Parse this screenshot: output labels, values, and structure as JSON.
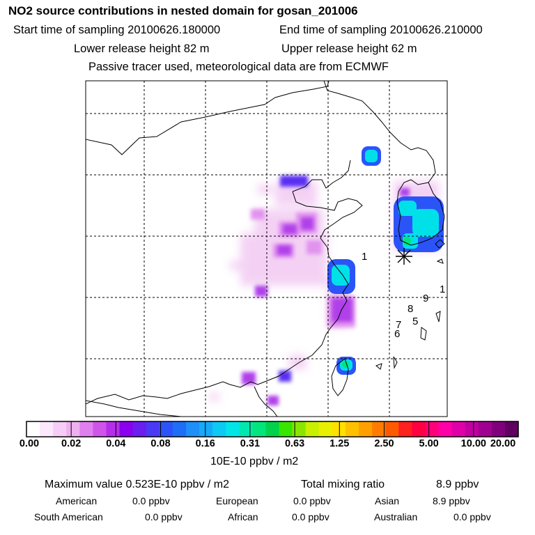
{
  "header": {
    "title": "NO2 source contributions in nested domain for gosan_201006",
    "start_label": "Start time of sampling 20100626.180000",
    "end_label": "End time of sampling 20100626.210000",
    "lower_label": "Lower release height   82 m",
    "upper_label": "Upper release height   62 m",
    "note": "Passive tracer used, meteorological data are from ECMWF"
  },
  "map": {
    "trajectory_markers": [
      "1",
      "1",
      "9",
      "8",
      "5",
      "7",
      "6"
    ],
    "receptor_marker": "gosan-asterisk"
  },
  "colorbar": {
    "tick_labels": [
      "0.00",
      "0.02",
      "0.04",
      "0.08",
      "0.16",
      "0.31",
      "0.63",
      "1.25",
      "2.50",
      "5.00",
      "10.00",
      "20.00"
    ],
    "colors": [
      "#ffffff",
      "#fbe8fb",
      "#f6cdf6",
      "#f0b0f0",
      "#e080ee",
      "#cf55ea",
      "#b52fea",
      "#8a00ef",
      "#6a1eef",
      "#4a3af5",
      "#2b54f8",
      "#1e6ef8",
      "#1e8ef8",
      "#16aaf8",
      "#0ccaf3",
      "#00e6e6",
      "#00e8b0",
      "#00e67d",
      "#00d24b",
      "#38e600",
      "#8ae600",
      "#c8f000",
      "#e8f000",
      "#ffe000",
      "#ffc000",
      "#ffa000",
      "#ff7c00",
      "#ff5a00",
      "#ff2020",
      "#ff0040",
      "#ff0078",
      "#ff00a8",
      "#e000a8",
      "#c000a0",
      "#a00090",
      "#80007c",
      "#600060"
    ],
    "unit": "10E-10 ppbv / m2"
  },
  "summary": {
    "max_label": "Maximum value  0.523E-10 ppbv / m2",
    "total_label": "Total mixing ratio",
    "total_value": "8.9 ppbv",
    "rows": [
      {
        "name": "American",
        "value": "0.0 ppbv"
      },
      {
        "name": "European",
        "value": "0.0 ppbv"
      },
      {
        "name": "Asian",
        "value": "8.9 ppbv"
      },
      {
        "name": "South American",
        "value": "0.0 ppbv"
      },
      {
        "name": "African",
        "value": "0.0 ppbv"
      },
      {
        "name": "Australian",
        "value": "0.0 ppbv"
      }
    ]
  }
}
